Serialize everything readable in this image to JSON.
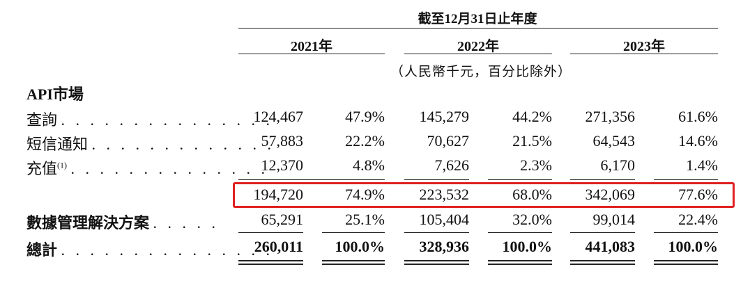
{
  "header": {
    "period": "截至12月31日止年度",
    "years": [
      "2021年",
      "2022年",
      "2023年"
    ],
    "currency_note": "（人民幣千元，百分比除外）"
  },
  "section": {
    "title": "API市場"
  },
  "rows": [
    {
      "label": "查詢",
      "leader": ". . . . . . . . . . . . . . .",
      "values": [
        "124,467",
        "47.9%",
        "145,279",
        "44.2%",
        "271,356",
        "61.6%"
      ]
    },
    {
      "label": "短信通知",
      "leader": ". . . . . . . . . . . . .",
      "values": [
        "57,883",
        "22.2%",
        "70,627",
        "21.5%",
        "64,543",
        "14.6%"
      ]
    },
    {
      "label": "充值",
      "sup": "(1)",
      "leader": ". . . . . . . . . . . . . .",
      "values": [
        "12,370",
        "4.8%",
        "7,626",
        "2.3%",
        "6,170",
        "1.4%"
      ]
    }
  ],
  "subtotal": {
    "values": [
      "194,720",
      "74.9%",
      "223,532",
      "68.0%",
      "342,069",
      "77.6%"
    ]
  },
  "data_mgmt": {
    "label": "數據管理解決方案",
    "leader": ". . . . .",
    "values": [
      "65,291",
      "25.1%",
      "105,404",
      "32.0%",
      "99,014",
      "22.4%"
    ]
  },
  "total": {
    "label": "總計",
    "leader": ". . . . . . . . . . . . . . .",
    "values": [
      "260,011",
      "100.0%",
      "328,936",
      "100.0%",
      "441,083",
      "100.0%"
    ]
  },
  "colors": {
    "highlight": "#e02020",
    "text": "#111111"
  }
}
